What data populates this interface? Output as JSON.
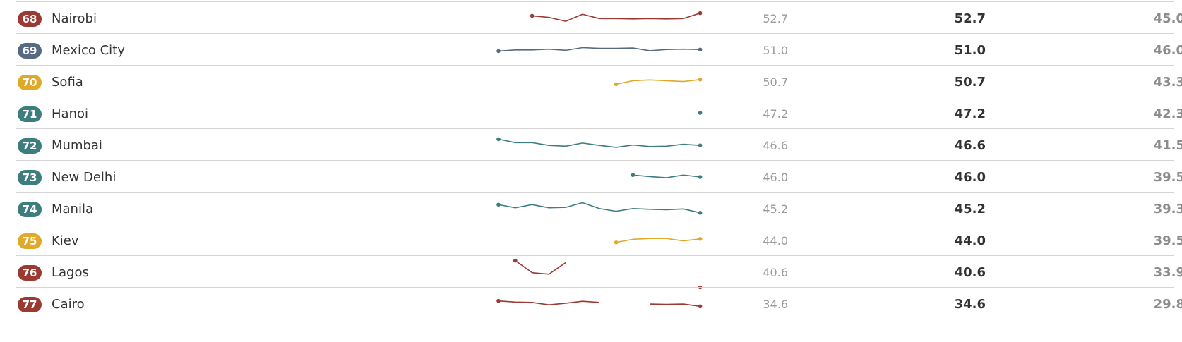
{
  "colors": {
    "red": "#9b3a33",
    "slate": "#566a83",
    "gold": "#e0a92a",
    "teal": "#3d7d80"
  },
  "chart_data": {
    "type": "table",
    "rows": [
      {
        "rank": "68",
        "city": "Nairobi",
        "color": "red",
        "spark_label": "52.7",
        "score": "52.7",
        "previous": "45.0",
        "trend": [
          null,
          null,
          52.0,
          51.6,
          50.6,
          52.4,
          51.3,
          51.3,
          51.2,
          51.3,
          51.2,
          51.3,
          52.7
        ]
      },
      {
        "rank": "69",
        "city": "Mexico City",
        "color": "slate",
        "spark_label": "51.0",
        "score": "51.0",
        "previous": "46.0",
        "trend": [
          50.6,
          50.9,
          50.9,
          51.1,
          50.8,
          51.5,
          51.3,
          51.3,
          51.4,
          50.7,
          51.0,
          51.1,
          51.0
        ]
      },
      {
        "rank": "70",
        "city": "Sofia",
        "color": "gold",
        "spark_label": "50.7",
        "score": "50.7",
        "previous": "43.3",
        "trend": [
          null,
          null,
          null,
          null,
          null,
          null,
          null,
          49.5,
          50.4,
          50.6,
          50.4,
          50.2,
          50.7
        ]
      },
      {
        "rank": "71",
        "city": "Hanoi",
        "color": "teal",
        "spark_label": "47.2",
        "score": "47.2",
        "previous": "42.3",
        "trend": [
          null,
          null,
          null,
          null,
          null,
          null,
          null,
          null,
          null,
          null,
          null,
          null,
          47.2
        ]
      },
      {
        "rank": "72",
        "city": "Mumbai",
        "color": "teal",
        "spark_label": "46.6",
        "score": "46.6",
        "previous": "41.5",
        "trend": [
          48.2,
          47.3,
          47.3,
          46.6,
          46.4,
          47.2,
          46.6,
          46.1,
          46.7,
          46.3,
          46.4,
          46.9,
          46.6
        ]
      },
      {
        "rank": "73",
        "city": "New Delhi",
        "color": "teal",
        "spark_label": "46.0",
        "score": "46.0",
        "previous": "39.5",
        "trend": [
          null,
          null,
          null,
          null,
          null,
          null,
          null,
          null,
          46.5,
          46.1,
          45.8,
          46.5,
          46.0
        ]
      },
      {
        "rank": "74",
        "city": "Manila",
        "color": "teal",
        "spark_label": "45.2",
        "score": "45.2",
        "previous": "39.3",
        "trend": [
          47.3,
          46.5,
          47.3,
          46.5,
          46.6,
          47.8,
          46.3,
          45.6,
          46.3,
          46.1,
          46.0,
          46.2,
          45.2
        ]
      },
      {
        "rank": "75",
        "city": "Kiev",
        "color": "gold",
        "spark_label": "44.0",
        "score": "44.0",
        "previous": "39.5",
        "trend": [
          null,
          null,
          null,
          null,
          null,
          null,
          null,
          43.1,
          43.9,
          44.1,
          44.1,
          43.5,
          44.0
        ]
      },
      {
        "rank": "76",
        "city": "Lagos",
        "color": "red",
        "spark_label": "40.6",
        "score": "40.6",
        "previous": "33.9",
        "trend": [
          null,
          47.5,
          44.4,
          44.0,
          47.0,
          null,
          null,
          null,
          null,
          null,
          null,
          null,
          40.6
        ]
      },
      {
        "rank": "77",
        "city": "Cairo",
        "color": "red",
        "spark_label": "34.6",
        "score": "34.6",
        "previous": "29.8",
        "trend": [
          36.0,
          35.7,
          35.6,
          35.0,
          35.4,
          35.9,
          35.6,
          null,
          null,
          35.2,
          35.1,
          35.2,
          34.6
        ]
      }
    ]
  }
}
